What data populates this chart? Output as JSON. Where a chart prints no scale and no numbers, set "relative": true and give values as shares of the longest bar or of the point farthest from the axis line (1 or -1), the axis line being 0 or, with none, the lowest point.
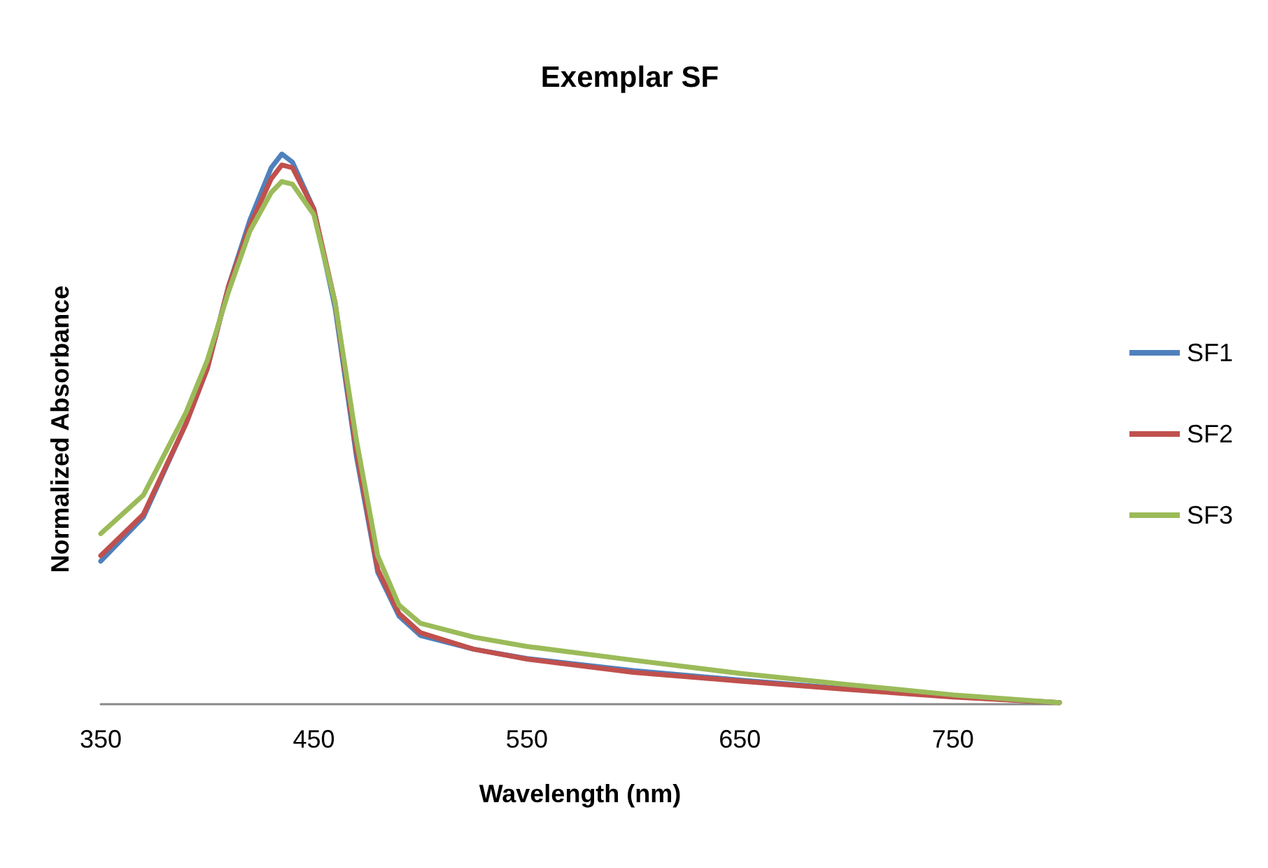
{
  "chart_data": {
    "type": "line",
    "title": "Exemplar SF",
    "xlabel": "Wavelength (nm)",
    "ylabel": "Normalized Absorbance",
    "relative": true,
    "grid": false,
    "legend": "right",
    "marker": "none",
    "line_style": "solid",
    "xlim": [
      350,
      800
    ],
    "xticks": [
      350,
      450,
      550,
      650,
      750
    ],
    "x": [
      350,
      370,
      390,
      400,
      410,
      420,
      430,
      435,
      440,
      450,
      460,
      470,
      480,
      490,
      500,
      525,
      550,
      600,
      650,
      700,
      750,
      800
    ],
    "series": [
      {
        "name": "SF1",
        "color": "#4f81bd",
        "values": [
          0.26,
          0.34,
          0.51,
          0.61,
          0.76,
          0.88,
          0.975,
          1.0,
          0.985,
          0.9,
          0.72,
          0.45,
          0.24,
          0.16,
          0.125,
          0.1,
          0.083,
          0.061,
          0.044,
          0.028,
          0.014,
          0.003
        ]
      },
      {
        "name": "SF2",
        "color": "#c0504d",
        "values": [
          0.27,
          0.345,
          0.51,
          0.61,
          0.76,
          0.87,
          0.955,
          0.98,
          0.975,
          0.9,
          0.73,
          0.46,
          0.245,
          0.165,
          0.13,
          0.1,
          0.082,
          0.058,
          0.042,
          0.027,
          0.013,
          0.003
        ]
      },
      {
        "name": "SF3",
        "color": "#9bbb59",
        "values": [
          0.31,
          0.38,
          0.53,
          0.625,
          0.75,
          0.86,
          0.93,
          0.95,
          0.945,
          0.89,
          0.73,
          0.48,
          0.27,
          0.18,
          0.147,
          0.122,
          0.105,
          0.08,
          0.056,
          0.036,
          0.017,
          0.003
        ]
      }
    ]
  }
}
